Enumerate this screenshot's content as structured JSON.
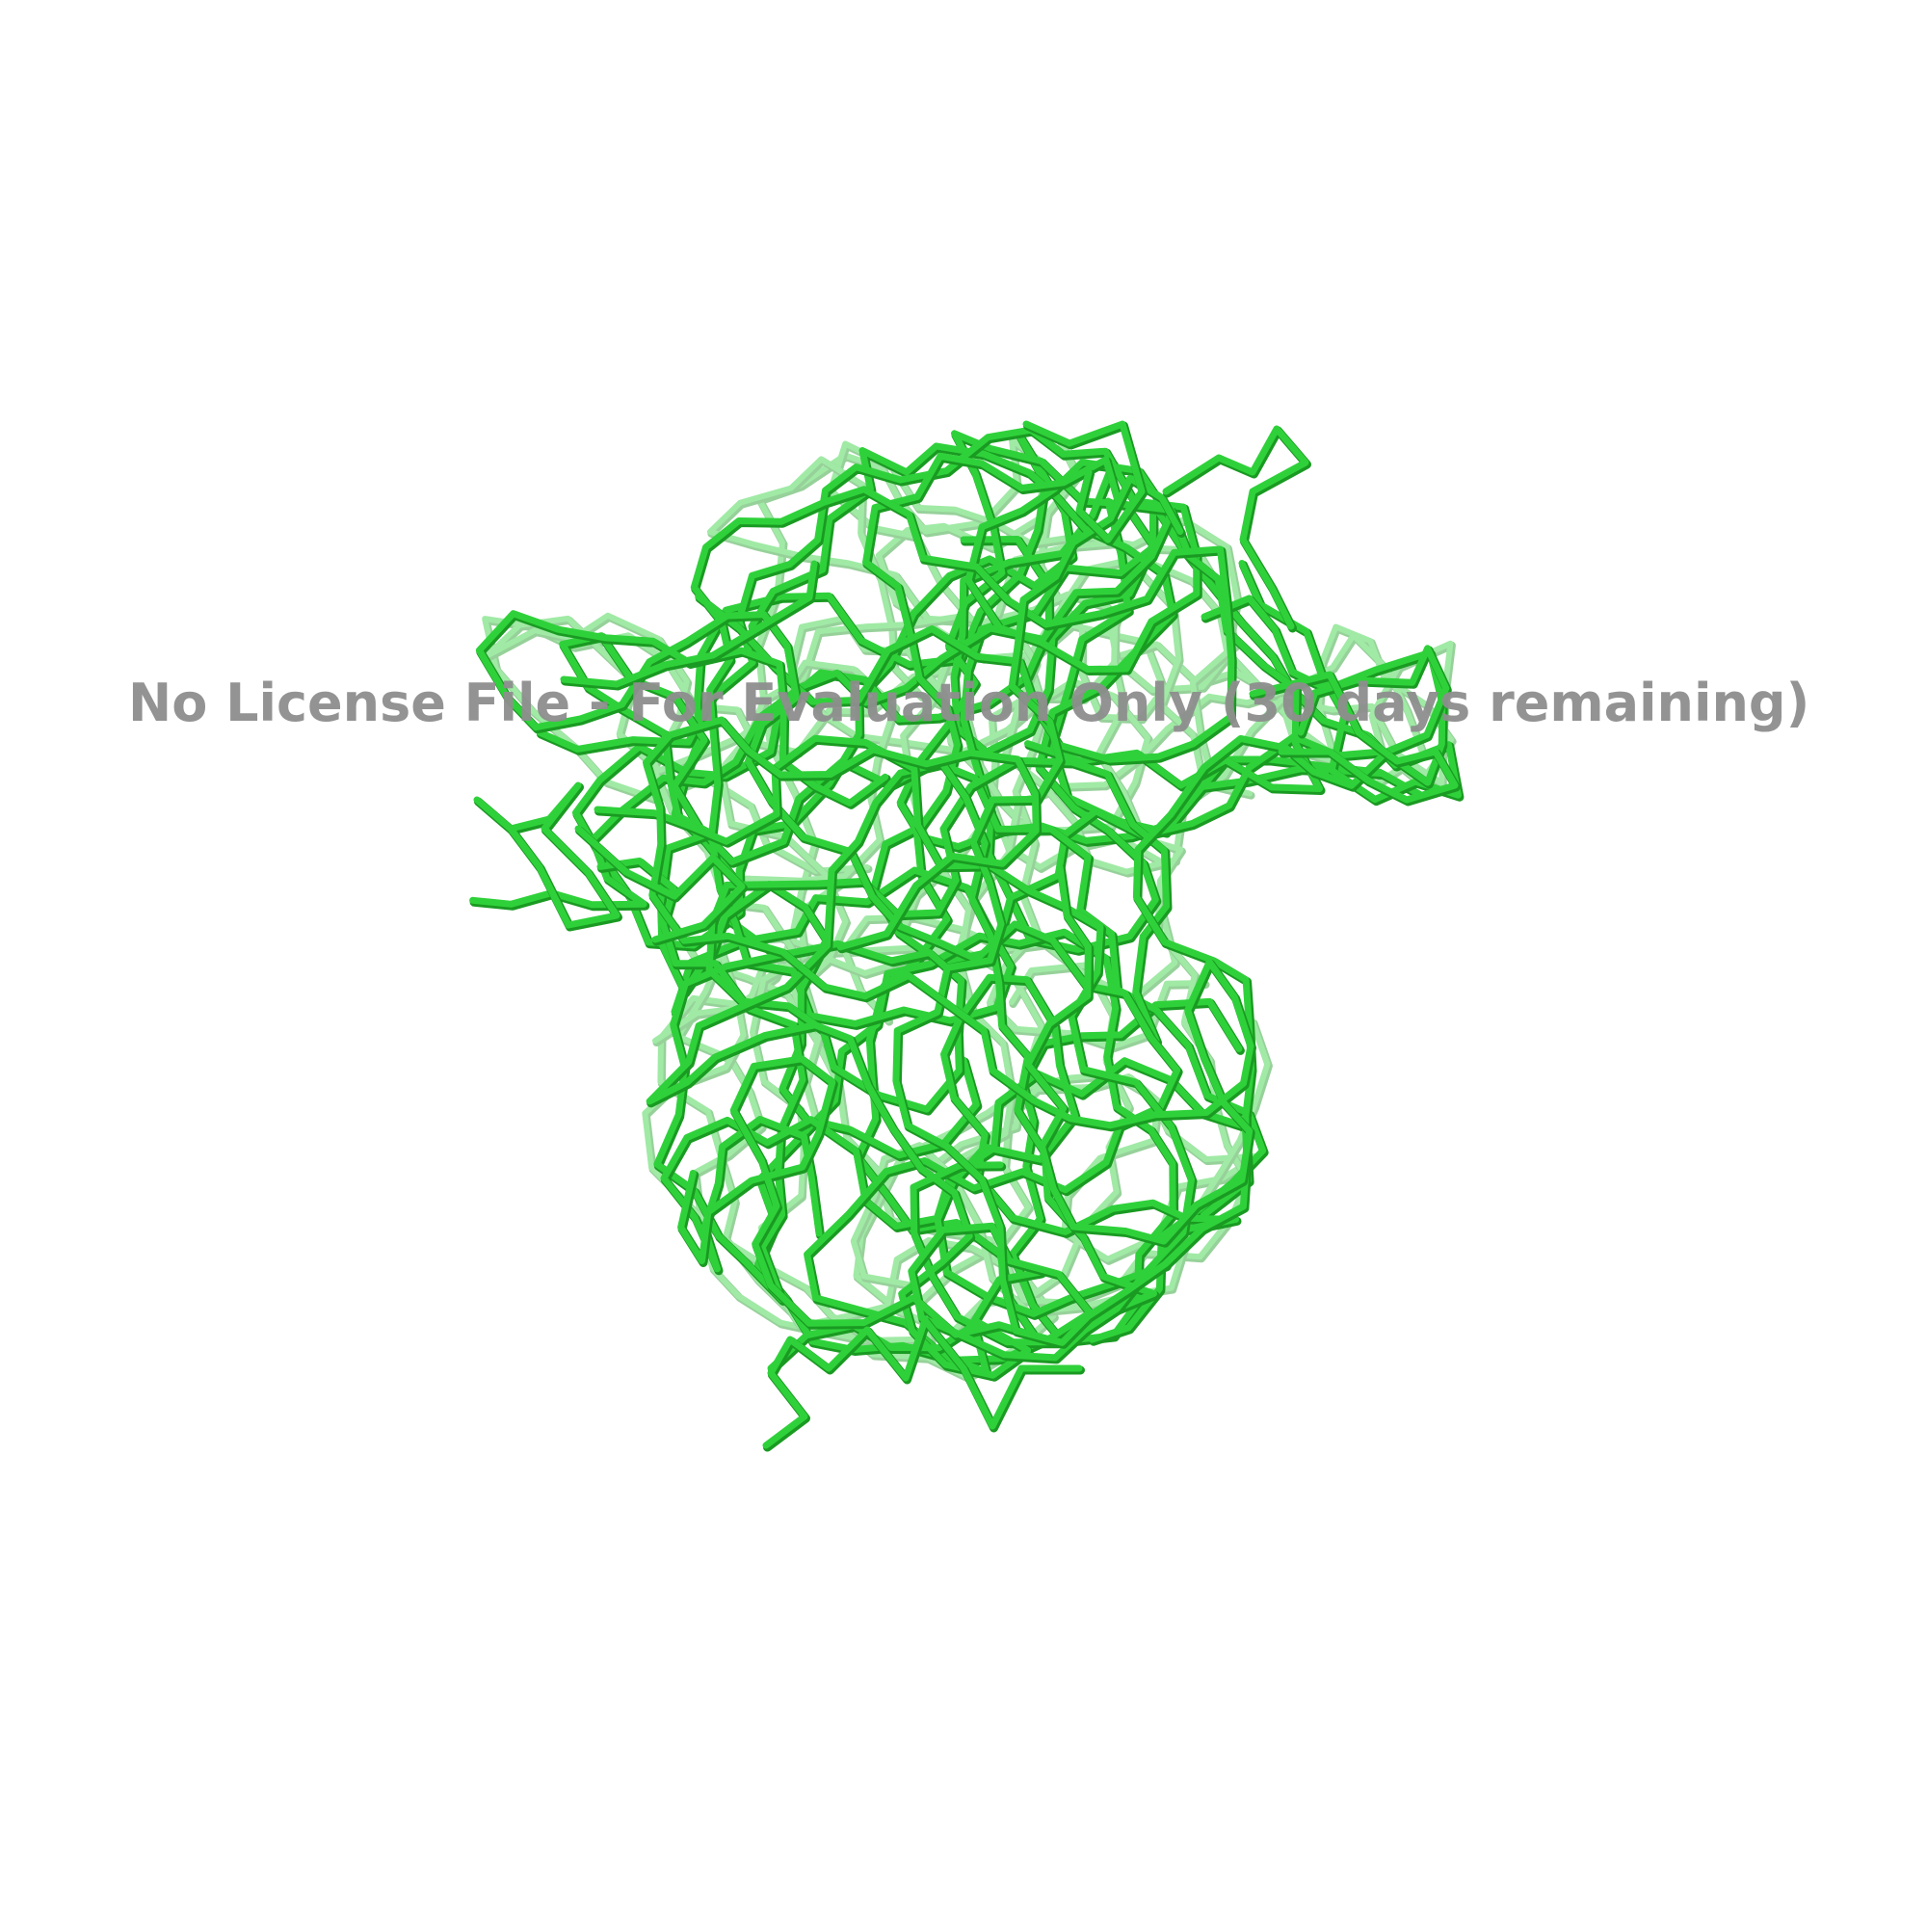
{
  "viewer": {
    "watermark": "No License File - For Evaluation Only (30 days remaining)"
  },
  "structure": {
    "representation": "ribbon-trace",
    "color": "#2fd13a",
    "shadow_color": "#1a9a22",
    "background": "#ffffff"
  }
}
